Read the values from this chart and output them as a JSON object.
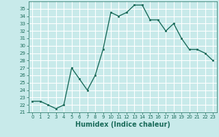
{
  "x": [
    0,
    1,
    2,
    3,
    4,
    5,
    6,
    7,
    8,
    9,
    10,
    11,
    12,
    13,
    14,
    15,
    16,
    17,
    18,
    19,
    20,
    21,
    22,
    23
  ],
  "y": [
    22.5,
    22.5,
    22.0,
    21.5,
    22.0,
    27.0,
    25.5,
    24.0,
    26.0,
    29.5,
    34.5,
    34.0,
    34.5,
    35.5,
    35.5,
    33.5,
    33.5,
    32.0,
    33.0,
    31.0,
    29.5,
    29.5,
    29.0,
    28.0
  ],
  "line_color": "#1a6b5a",
  "marker": "s",
  "markersize": 2.0,
  "linewidth": 1.0,
  "xlabel": "Humidex (Indice chaleur)",
  "ylim": [
    21,
    36
  ],
  "xlim": [
    -0.5,
    23.5
  ],
  "yticks": [
    21,
    22,
    23,
    24,
    25,
    26,
    27,
    28,
    29,
    30,
    31,
    32,
    33,
    34,
    35
  ],
  "xticks": [
    0,
    1,
    2,
    3,
    4,
    5,
    6,
    7,
    8,
    9,
    10,
    11,
    12,
    13,
    14,
    15,
    16,
    17,
    18,
    19,
    20,
    21,
    22,
    23
  ],
  "bg_color": "#c8eaea",
  "grid_color": "#b0d8d8",
  "tick_label_fontsize": 5.0,
  "xlabel_fontsize": 7.0
}
